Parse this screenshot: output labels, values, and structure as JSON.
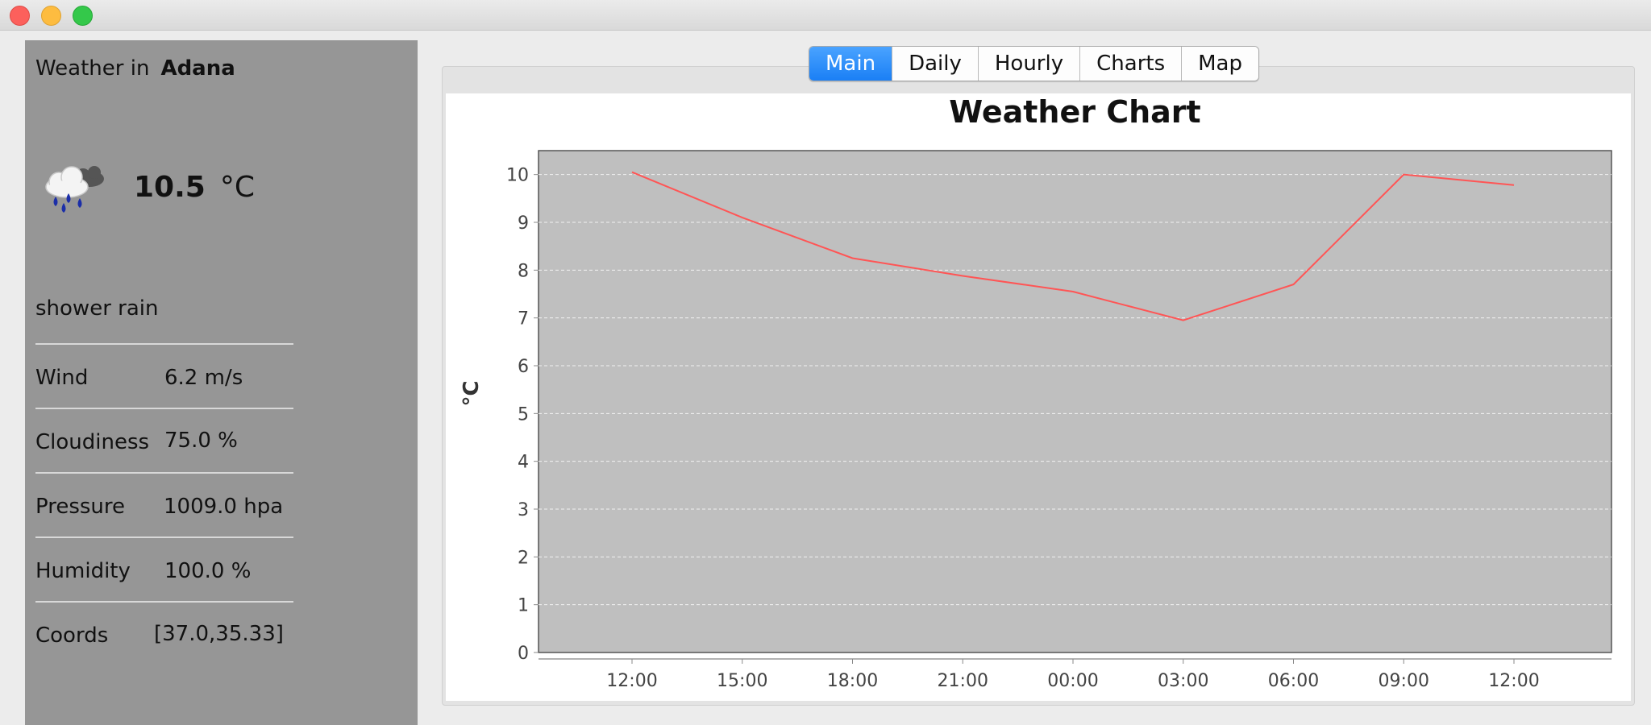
{
  "window": {
    "controls": [
      "close",
      "minimize",
      "maximize"
    ]
  },
  "sidebar": {
    "weather_in_label": "Weather in",
    "city": "Adana",
    "icon": "cloud-rain-icon",
    "temperature": "10.5",
    "temperature_unit": "°C",
    "description": "shower rain",
    "details": [
      {
        "label": "Wind",
        "value": "6.2 m/s"
      },
      {
        "label": "Cloudiness",
        "value": "75.0 %"
      },
      {
        "label": "Pressure",
        "value": "1009.0 hpa"
      },
      {
        "label": "Humidity",
        "value": "100.0 %"
      },
      {
        "label": "Coords",
        "value": "[37.0,35.33]"
      }
    ]
  },
  "tabs": [
    {
      "label": "Main",
      "active": true
    },
    {
      "label": "Daily",
      "active": false
    },
    {
      "label": "Hourly",
      "active": false
    },
    {
      "label": "Charts",
      "active": false
    },
    {
      "label": "Map",
      "active": false
    }
  ],
  "colors": {
    "line": "#ff5555",
    "plot_bg": "#bfbfbf",
    "sidebar_bg": "#969696",
    "tab_active": "#1a7ff5"
  },
  "chart_data": {
    "type": "line",
    "title": "Weather Chart",
    "xlabel": "",
    "ylabel": "°C",
    "categories": [
      "12:00",
      "15:00",
      "18:00",
      "21:00",
      "00:00",
      "03:00",
      "06:00",
      "09:00",
      "12:00"
    ],
    "series": [
      {
        "values": [
          10.05,
          9.1,
          8.25,
          7.88,
          7.55,
          6.95,
          7.7,
          10.0,
          9.78
        ]
      }
    ],
    "ylim": [
      0,
      10.5
    ],
    "yticks": [
      0,
      1,
      2,
      3,
      4,
      5,
      6,
      7,
      8,
      9,
      10
    ],
    "grid": true,
    "legend": "none"
  }
}
